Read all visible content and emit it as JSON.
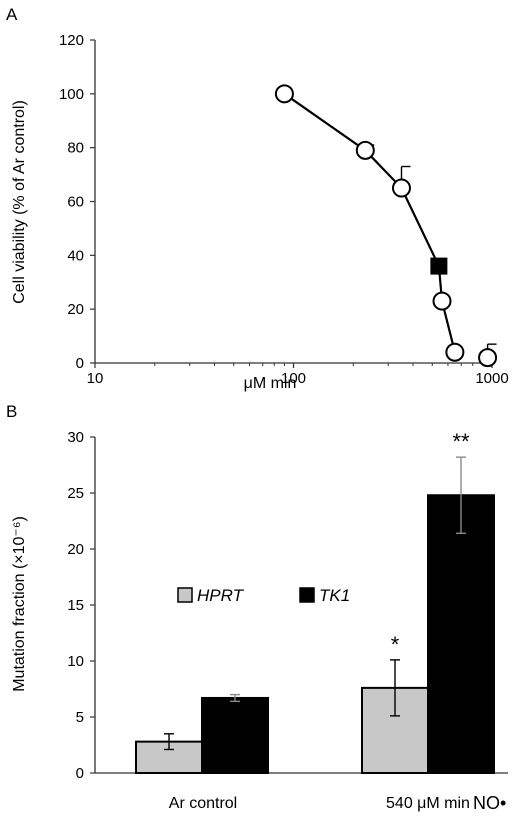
{
  "chart_data": [
    {
      "panel": "A",
      "type": "scatter",
      "xlabel": "μM min",
      "ylabel": "Cell viability (% of Ar control)",
      "xscale": "log",
      "xlim": [
        10,
        1000
      ],
      "ylim": [
        0,
        120
      ],
      "xticks": [
        "10",
        "100",
        "1000"
      ],
      "yticks": [
        "0",
        "20",
        "40",
        "60",
        "80",
        "100",
        "120"
      ],
      "grid": false,
      "points": [
        {
          "x": 90,
          "y": 100,
          "err": 0,
          "marker": "open-circle"
        },
        {
          "x": 230,
          "y": 79,
          "err": 2,
          "marker": "open-circle"
        },
        {
          "x": 350,
          "y": 65,
          "err": 8,
          "marker": "open-circle"
        },
        {
          "x": 540,
          "y": 36,
          "err": 0,
          "marker": "filled-square"
        },
        {
          "x": 560,
          "y": 23,
          "err": 0,
          "marker": "open-circle"
        },
        {
          "x": 650,
          "y": 4,
          "err": 0,
          "marker": "open-circle"
        },
        {
          "x": 950,
          "y": 2,
          "err": 5,
          "marker": "open-circle"
        }
      ]
    },
    {
      "panel": "B",
      "type": "bar",
      "ylabel": "Mutation fraction (×10⁻⁶)",
      "ylim": [
        0,
        30
      ],
      "yticks": [
        "0",
        "5",
        "10",
        "15",
        "20",
        "25",
        "30"
      ],
      "categories": [
        "Ar control",
        "540 μM min"
      ],
      "extra_label": "NO•",
      "legend_position": "center",
      "series": [
        {
          "name": "HPRT",
          "color": "#c8c8c8",
          "values": [
            2.8,
            7.6
          ],
          "errors": [
            0.7,
            2.5
          ]
        },
        {
          "name": "TK1",
          "color": "#000000",
          "values": [
            6.7,
            24.8
          ],
          "errors": [
            0.3,
            3.4
          ]
        }
      ],
      "significance": [
        {
          "series": "HPRT",
          "category": 1,
          "label": "*"
        },
        {
          "series": "TK1",
          "category": 1,
          "label": "**"
        }
      ]
    }
  ]
}
